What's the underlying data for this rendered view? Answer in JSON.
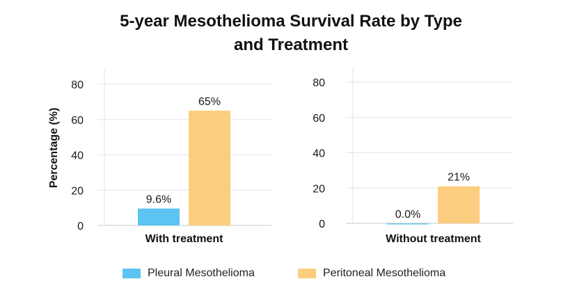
{
  "title": [
    "5-year Mesothelioma Survival Rate by Type",
    "and Treatment"
  ],
  "colors": {
    "pleural": "#5bc4f0",
    "peritoneal": "#fccd7e",
    "grid": "#e3e3e3",
    "axis": "#c8c8c8",
    "text": "#1a1a1a"
  },
  "chart_data": [
    {
      "type": "bar",
      "title": "",
      "xlabel": "With treatment",
      "ylabel": "Percentage (%)",
      "ylim": [
        0,
        80
      ],
      "yticks": [
        0,
        20,
        40,
        60,
        80
      ],
      "grid": true,
      "series": [
        {
          "name": "Pleural Mesothelioma",
          "value": 9.6,
          "label": "9.6%"
        },
        {
          "name": "Peritoneal Mesothelioma",
          "value": 65,
          "label": "65%"
        }
      ]
    },
    {
      "type": "bar",
      "title": "",
      "xlabel": "Without treatment",
      "ylabel": "",
      "ylim": [
        0,
        80
      ],
      "yticks": [
        0,
        20,
        40,
        60,
        80
      ],
      "grid": true,
      "series": [
        {
          "name": "Pleural Mesothelioma",
          "value": 0.0,
          "label": "0.0%"
        },
        {
          "name": "Peritoneal Mesothelioma",
          "value": 21,
          "label": "21%"
        }
      ]
    }
  ],
  "legend": {
    "position": "bottom",
    "items": [
      {
        "label": "Pleural Mesothelioma",
        "color": "#5bc4f0"
      },
      {
        "label": "Peritoneal Mesothelioma",
        "color": "#fccd7e"
      }
    ]
  }
}
